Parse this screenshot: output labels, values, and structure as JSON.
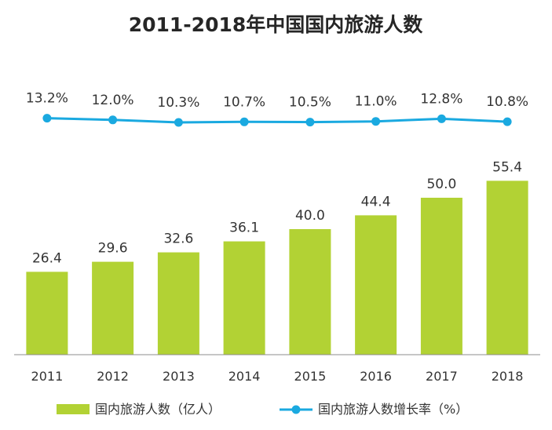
{
  "chart_data": {
    "type": "bar",
    "title": "2011-2018年中国国内旅游人数",
    "categories": [
      "2011",
      "2012",
      "2013",
      "2014",
      "2015",
      "2016",
      "2017",
      "2018"
    ],
    "series": [
      {
        "name": "国内旅游人数（亿人）",
        "type": "bar",
        "color": "#b2d234",
        "values": [
          26.4,
          29.6,
          32.6,
          36.1,
          40.0,
          44.4,
          50.0,
          55.4
        ],
        "labels": [
          "26.4",
          "29.6",
          "32.6",
          "36.1",
          "40.0",
          "44.4",
          "50.0",
          "55.4"
        ]
      },
      {
        "name": "国内旅游人数增长率（%）",
        "type": "line",
        "color": "#1aa9e0",
        "values": [
          13.2,
          12.0,
          10.3,
          10.7,
          10.5,
          11.0,
          12.8,
          10.8
        ],
        "labels": [
          "13.2%",
          "12.0%",
          "10.3%",
          "10.7%",
          "10.5%",
          "11.0%",
          "12.8%",
          "10.8%"
        ]
      }
    ],
    "xlabel": "",
    "ylabel": "",
    "ylim": [
      0,
      60
    ],
    "legend_position": "bottom",
    "grid": false
  }
}
